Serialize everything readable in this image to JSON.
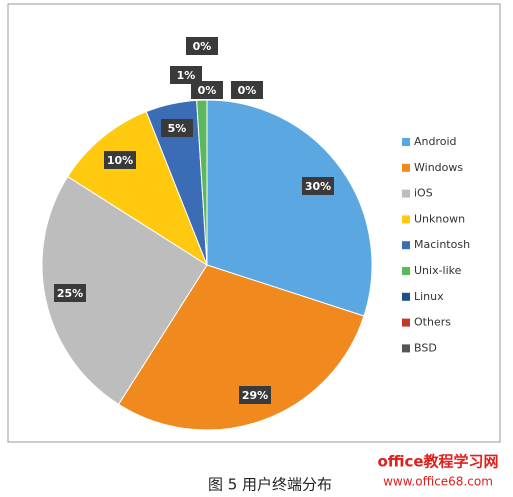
{
  "chart_data": {
    "type": "pie",
    "categories": [
      "Android",
      "Windows",
      "iOS",
      "Unknown",
      "Macintosh",
      "Unix-like",
      "Linux",
      "Others",
      "BSD"
    ],
    "values": [
      30,
      29,
      25,
      10,
      5,
      1,
      0,
      0,
      0
    ],
    "value_labels": [
      "30%",
      "29%",
      "25%",
      "10%",
      "5%",
      "1%",
      "0%",
      "0%",
      "0%"
    ],
    "colors": [
      "#5ba7e2",
      "#f08a1e",
      "#bdbdbd",
      "#ffc910",
      "#3a6db5",
      "#5cb85c",
      "#1f4e8c",
      "#c0392b",
      "#555555"
    ],
    "legend": "right"
  },
  "caption": "图 5 用户终端分布",
  "watermark": {
    "title": "office教程学习网",
    "url": "www.office68.com"
  }
}
